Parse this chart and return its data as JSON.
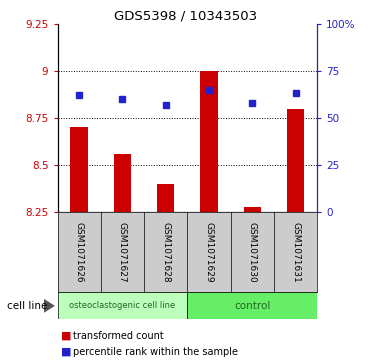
{
  "title": "GDS5398 / 10343503",
  "samples": [
    "GSM1071626",
    "GSM1071627",
    "GSM1071628",
    "GSM1071629",
    "GSM1071630",
    "GSM1071631"
  ],
  "bar_values": [
    8.7,
    8.56,
    8.4,
    9.0,
    8.28,
    8.8
  ],
  "bar_bottom": 8.25,
  "dot_values_pct": [
    62,
    60,
    57,
    65,
    58,
    63
  ],
  "bar_color": "#cc0000",
  "dot_color": "#2222cc",
  "ylim": [
    8.25,
    9.25
  ],
  "ylim_right": [
    0,
    100
  ],
  "yticks_left": [
    8.25,
    8.5,
    8.75,
    9.0,
    9.25
  ],
  "ytick_labels_left": [
    "8.25",
    "8.5",
    "8.75",
    "9",
    "9.25"
  ],
  "yticks_right_pct": [
    0,
    25,
    50,
    75,
    100
  ],
  "ytick_labels_right": [
    "0",
    "25",
    "50",
    "75",
    "100%"
  ],
  "grid_values": [
    8.5,
    8.75,
    9.0
  ],
  "group1_label": "osteoclastogenic cell line",
  "group2_label": "control",
  "group1_color": "#bbffbb",
  "group2_color": "#66ee66",
  "cell_line_label": "cell line",
  "legend_items": [
    {
      "label": "transformed count",
      "color": "#cc0000"
    },
    {
      "label": "percentile rank within the sample",
      "color": "#2222cc"
    }
  ],
  "bar_width": 0.4,
  "background_color": "#ffffff",
  "tick_color_left": "#cc0000",
  "tick_color_right": "#2222cc",
  "sample_bg": "#cccccc",
  "plot_border_color": "#000000"
}
